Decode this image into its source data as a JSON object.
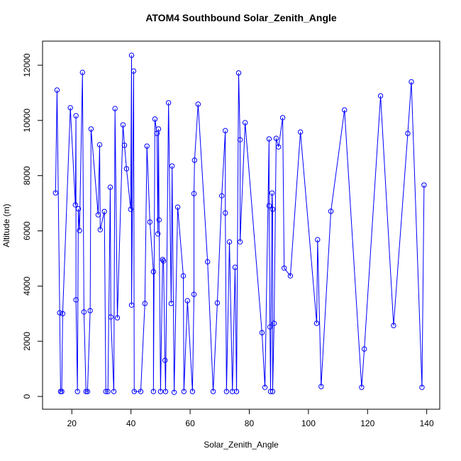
{
  "chart_data": {
    "type": "line",
    "title": "ATOM4 Southbound Solar_Zenith_Angle",
    "x_label": "Solar_Zenith_Angle",
    "y_label": "Altitude (m)",
    "xlim": [
      10.1,
      144.4
    ],
    "ylim": [
      -462,
      12873
    ],
    "xticks": [
      20,
      40,
      60,
      80,
      100,
      120,
      140
    ],
    "yticks": [
      0,
      2000,
      4000,
      6000,
      8000,
      10000,
      12000
    ],
    "markers": true,
    "series": [
      {
        "color": "#0000ff",
        "x": [
          14.5,
          15.0,
          15.9,
          16.2,
          16.6,
          16.9,
          19.5,
          21.2,
          21.4,
          21.4,
          21.9,
          22.2,
          22.6,
          23.6,
          24.1,
          24.8,
          25.3,
          26.2,
          26.5,
          28.9,
          29.4,
          29.6,
          31.0,
          31.5,
          32.2,
          33.0,
          33.2,
          34.2,
          34.6,
          35.4,
          37.3,
          37.8,
          38.5,
          39.9,
          40.2,
          40.2,
          40.9,
          41.1,
          43.3,
          44.7,
          45.4,
          46.4,
          47.6,
          47.6,
          48.1,
          48.8,
          49.1,
          49.3,
          49.5,
          50.0,
          50.7,
          51.0,
          51.5,
          51.7,
          52.7,
          53.6,
          53.9,
          54.6,
          55.8,
          57.7,
          57.9,
          59.1,
          60.8,
          61.3,
          61.3,
          61.5,
          62.7,
          65.9,
          67.8,
          69.2,
          70.7,
          71.9,
          71.9,
          72.3,
          73.3,
          74.3,
          75.2,
          75.7,
          76.4,
          76.9,
          76.9,
          78.6,
          84.3,
          85.3,
          86.7,
          86.7,
          87.0,
          87.2,
          87.7,
          87.9,
          87.9,
          88.4,
          89.1,
          89.9,
          91.3,
          91.8,
          93.9,
          97.3,
          102.8,
          103.1,
          104.3,
          107.6,
          112.2,
          118.0,
          118.9,
          124.4,
          128.8,
          133.6,
          134.8,
          138.4,
          139.1
        ],
        "values": [
          7374,
          11100,
          3030,
          180,
          180,
          3000,
          10460,
          6940,
          10170,
          3500,
          180,
          6800,
          6010,
          11740,
          3060,
          180,
          180,
          3110,
          9690,
          6580,
          9120,
          6040,
          6700,
          180,
          180,
          7580,
          2880,
          180,
          10430,
          2850,
          9840,
          9100,
          8250,
          6780,
          12360,
          3310,
          11790,
          180,
          180,
          3370,
          9070,
          6320,
          4520,
          180,
          10050,
          9530,
          5890,
          9690,
          6400,
          180,
          4960,
          4910,
          1310,
          180,
          10640,
          3370,
          8350,
          150,
          6860,
          4370,
          180,
          3470,
          180,
          3700,
          7350,
          8560,
          10590,
          4880,
          180,
          3390,
          7270,
          9630,
          6650,
          180,
          5600,
          180,
          4680,
          180,
          11720,
          9300,
          5600,
          9920,
          2310,
          330,
          9330,
          6910,
          2520,
          180,
          7370,
          6780,
          180,
          2650,
          9350,
          9040,
          10100,
          4650,
          4370,
          9580,
          2650,
          5680,
          360,
          6710,
          10380,
          330,
          1720,
          10890,
          2570,
          9530,
          11400,
          330,
          7660
        ]
      }
    ]
  }
}
